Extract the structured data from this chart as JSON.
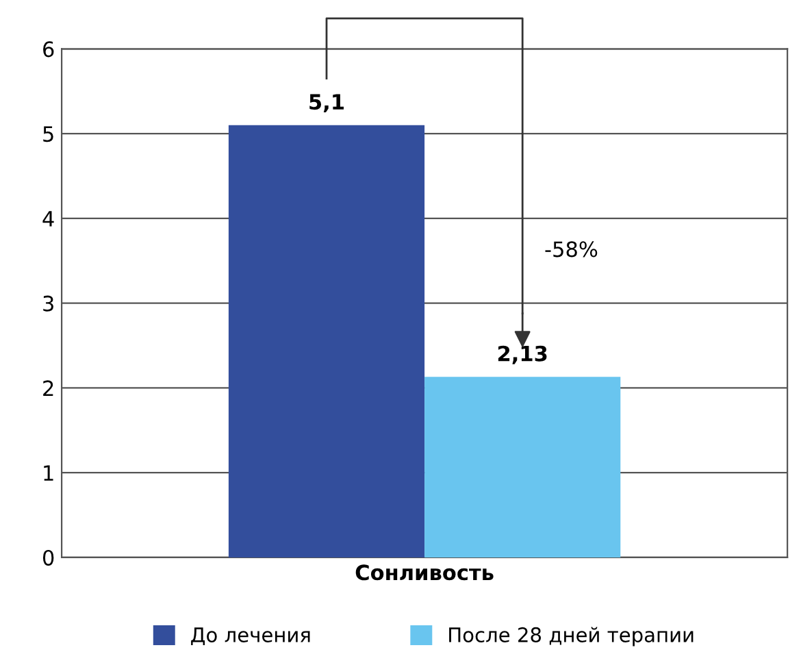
{
  "chart_data": {
    "type": "bar",
    "categories": [
      "Сонливость"
    ],
    "series": [
      {
        "name": "До лечения",
        "color": "#334e9c",
        "values": [
          5.1
        ],
        "value_labels": [
          "5,1"
        ]
      },
      {
        "name": "После 28 дней терапии",
        "color": "#69c5ef",
        "values": [
          2.13
        ],
        "value_labels": [
          "2,13"
        ]
      }
    ],
    "ylim": [
      0,
      6
    ],
    "yticks": [
      0,
      1,
      2,
      3,
      4,
      5,
      6
    ],
    "grid": "y",
    "legend": "bottom",
    "annotations": [
      "-58%"
    ]
  }
}
